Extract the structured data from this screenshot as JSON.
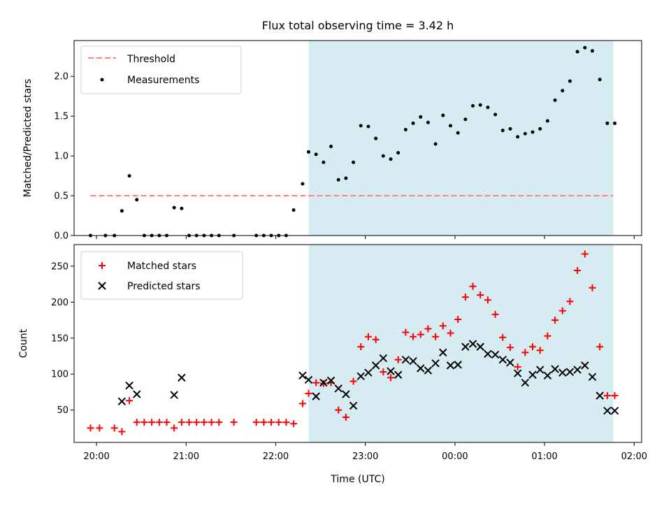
{
  "chart_data": [
    {
      "type": "scatter",
      "title": "Flux total observing time = 3.42 h",
      "ylabel": "Matched/Predicted stars",
      "xlim": [
        "19:45",
        "02:05"
      ],
      "ylim": [
        0,
        2.45
      ],
      "yticks": [
        0.0,
        0.5,
        1.0,
        1.5,
        2.0
      ],
      "yticklabels": [
        "0.0",
        "0.5",
        "1.0",
        "1.5",
        "2.0"
      ],
      "shaded_region": [
        "22:22",
        "01:46"
      ],
      "threshold": {
        "value": 0.5,
        "x": [
          "19:56",
          "01:46"
        ],
        "color": "#ff7f7f",
        "style": "dashed"
      },
      "legend": {
        "position": "top-left",
        "entries": [
          "Threshold",
          "Measurements"
        ]
      },
      "series": [
        {
          "name": "Measurements",
          "marker": "dot",
          "color": "#000000",
          "x": [
            "19:56",
            "20:06",
            "20:12",
            "20:17",
            "20:22",
            "20:27",
            "20:32",
            "20:37",
            "20:42",
            "20:47",
            "20:52",
            "20:57",
            "21:02",
            "21:07",
            "21:12",
            "21:17",
            "21:22",
            "21:32",
            "21:47",
            "21:52",
            "21:57",
            "22:02",
            "22:07",
            "22:12",
            "22:18",
            "22:22",
            "22:27",
            "22:32",
            "22:37",
            "22:42",
            "22:47",
            "22:52",
            "22:57",
            "23:02",
            "23:07",
            "23:12",
            "23:17",
            "23:22",
            "23:27",
            "23:32",
            "23:37",
            "23:42",
            "23:47",
            "23:52",
            "23:57",
            "00:02",
            "00:07",
            "00:12",
            "00:17",
            "00:22",
            "00:27",
            "00:32",
            "00:37",
            "00:42",
            "00:47",
            "00:52",
            "00:57",
            "01:02",
            "01:07",
            "01:12",
            "01:17",
            "01:22",
            "01:27",
            "01:32",
            "01:37",
            "01:42",
            "01:47"
          ],
          "y": [
            0,
            0,
            0,
            0.31,
            0.75,
            0.45,
            0,
            0,
            0,
            0,
            0.35,
            0.34,
            0,
            0,
            0,
            0,
            0,
            0,
            0,
            0,
            0,
            0,
            0,
            0.32,
            0.65,
            1.05,
            1.02,
            0.92,
            1.12,
            0.7,
            0.72,
            0.92,
            1.38,
            1.37,
            1.22,
            1.0,
            0.96,
            1.04,
            1.33,
            1.41,
            1.49,
            1.42,
            1.15,
            1.51,
            1.38,
            1.29,
            1.46,
            1.63,
            1.64,
            1.61,
            1.52,
            1.32,
            1.34,
            1.24,
            1.28,
            1.3,
            1.34,
            1.44,
            1.7,
            1.82,
            1.94,
            2.31,
            2.36,
            2.32,
            1.96,
            1.41,
            1.41
          ]
        }
      ]
    },
    {
      "type": "scatter",
      "xlabel": "Time (UTC)",
      "ylabel": "Count",
      "xlim": [
        "19:45",
        "02:05"
      ],
      "ylim": [
        5,
        280
      ],
      "yticks": [
        50,
        100,
        150,
        200,
        250
      ],
      "yticklabels": [
        "50",
        "100",
        "150",
        "200",
        "250"
      ],
      "xticks": [
        "20:00",
        "21:00",
        "22:00",
        "23:00",
        "00:00",
        "01:00",
        "02:00"
      ],
      "xticklabels": [
        "20:00",
        "21:00",
        "22:00",
        "23:00",
        "00:00",
        "01:00",
        "02:00"
      ],
      "shaded_region": [
        "22:22",
        "01:46"
      ],
      "legend": {
        "position": "top-left",
        "entries": [
          "Matched stars",
          "Predicted stars"
        ]
      },
      "series": [
        {
          "name": "Matched stars",
          "marker": "plus",
          "color": "#ff0000",
          "x": [
            "19:56",
            "20:02",
            "20:12",
            "20:17",
            "20:22",
            "20:27",
            "20:32",
            "20:37",
            "20:42",
            "20:47",
            "20:52",
            "20:57",
            "21:02",
            "21:07",
            "21:12",
            "21:17",
            "21:22",
            "21:32",
            "21:47",
            "21:52",
            "21:57",
            "22:02",
            "22:07",
            "22:12",
            "22:18",
            "22:22",
            "22:27",
            "22:32",
            "22:37",
            "22:42",
            "22:47",
            "22:52",
            "22:57",
            "23:02",
            "23:07",
            "23:12",
            "23:17",
            "23:22",
            "23:27",
            "23:32",
            "23:37",
            "23:42",
            "23:47",
            "23:52",
            "23:57",
            "00:02",
            "00:07",
            "00:12",
            "00:17",
            "00:22",
            "00:27",
            "00:32",
            "00:37",
            "00:42",
            "00:47",
            "00:52",
            "00:57",
            "01:02",
            "01:07",
            "01:12",
            "01:17",
            "01:22",
            "01:27",
            "01:32",
            "01:37",
            "01:42",
            "01:47"
          ],
          "y": [
            25,
            25,
            25,
            20,
            63,
            33,
            33,
            33,
            33,
            33,
            25,
            33,
            33,
            33,
            33,
            33,
            33,
            33,
            33,
            33,
            33,
            33,
            33,
            31,
            59,
            73,
            88,
            87,
            88,
            50,
            40,
            90,
            138,
            152,
            148,
            103,
            95,
            120,
            158,
            152,
            155,
            163,
            152,
            167,
            157,
            176,
            207,
            222,
            210,
            203,
            183,
            151,
            137,
            110,
            130,
            138,
            133,
            153,
            175,
            188,
            201,
            244,
            267,
            220,
            138,
            70,
            70
          ]
        },
        {
          "name": "Predicted stars",
          "marker": "x",
          "color": "#000000",
          "x": [
            "20:17",
            "20:22",
            "20:27",
            "20:52",
            "20:57",
            "22:18",
            "22:22",
            "22:27",
            "22:32",
            "22:37",
            "22:42",
            "22:47",
            "22:52",
            "22:57",
            "23:02",
            "23:07",
            "23:12",
            "23:17",
            "23:22",
            "23:27",
            "23:32",
            "23:37",
            "23:42",
            "23:47",
            "23:52",
            "23:57",
            "00:02",
            "00:07",
            "00:12",
            "00:17",
            "00:22",
            "00:27",
            "00:32",
            "00:37",
            "00:42",
            "00:47",
            "00:52",
            "00:57",
            "01:02",
            "01:07",
            "01:12",
            "01:17",
            "01:22",
            "01:27",
            "01:32",
            "01:37",
            "01:42",
            "01:47"
          ],
          "y": [
            62,
            84,
            72,
            71,
            95,
            98,
            92,
            69,
            88,
            91,
            80,
            72,
            56,
            97,
            102,
            112,
            122,
            104,
            99,
            120,
            118,
            108,
            105,
            115,
            130,
            112,
            113,
            138,
            142,
            138,
            128,
            127,
            120,
            116,
            101,
            88,
            99,
            106,
            98,
            107,
            102,
            103,
            106,
            112,
            96,
            70,
            49,
            49
          ]
        }
      ]
    }
  ]
}
